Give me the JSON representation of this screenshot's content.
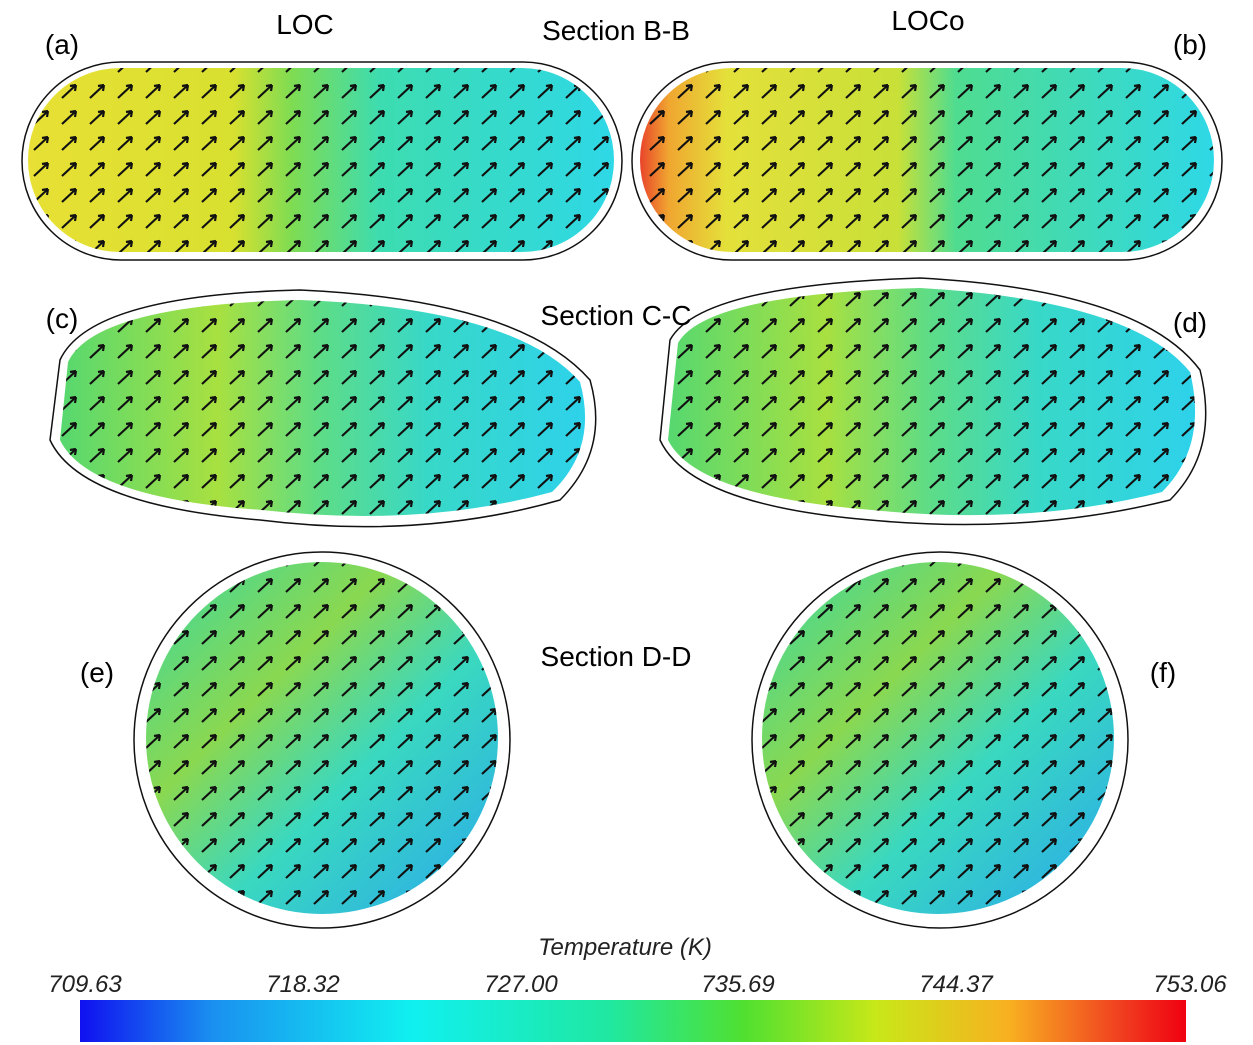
{
  "columns": [
    "LOC",
    "LOCo"
  ],
  "sections": [
    "Section B-B",
    "Section C-C",
    "Section D-D"
  ],
  "panels": [
    "(a)",
    "(b)",
    "(c)",
    "(d)",
    "(e)",
    "(f)"
  ],
  "colorbar": {
    "title": "Temperature (K)",
    "ticks": [
      "709.63",
      "718.32",
      "727.00",
      "735.69",
      "744.37",
      "753.06"
    ]
  }
}
